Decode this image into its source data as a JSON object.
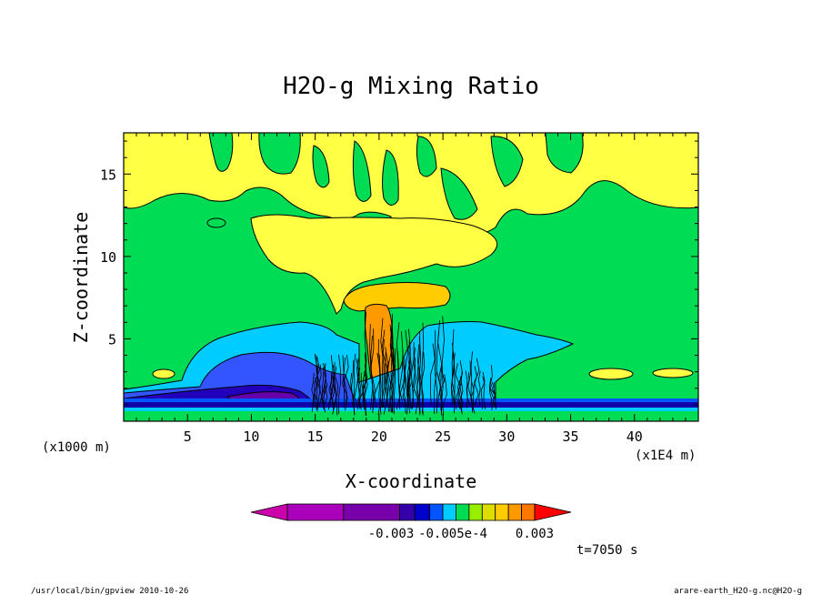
{
  "chart_data": {
    "type": "heatmap",
    "title": "H2O-g Mixing Ratio",
    "xlabel": "X-coordinate",
    "ylabel": "Z-coordinate",
    "x_unit_label": "(x1000 m)",
    "x_axis_extra_label": "(x1E4 m)",
    "xlim": [
      0,
      45
    ],
    "ylim": [
      0,
      17.5
    ],
    "x_ticks": [
      "5",
      "10",
      "15",
      "20",
      "25",
      "30",
      "35",
      "40"
    ],
    "y_ticks": [
      "5",
      "10",
      "15"
    ],
    "colorbar": {
      "colors": [
        "#cc00aa",
        "#aa00bb",
        "#7700aa",
        "#3300aa",
        "#0000cc",
        "#0055ff",
        "#00ccff",
        "#00dd55",
        "#99ee00",
        "#dddd00",
        "#ffcc00",
        "#ff9900",
        "#ff7700",
        "#ff0000"
      ],
      "tick_labels": [
        "-0.003",
        "-0.005e-4",
        "0.003"
      ]
    },
    "time_label": "t=7050 s",
    "footer_left": "/usr/local/bin/gpview  2010-10-26",
    "footer_right": "arare-earth_H2O-g.nc@H2O-g"
  }
}
